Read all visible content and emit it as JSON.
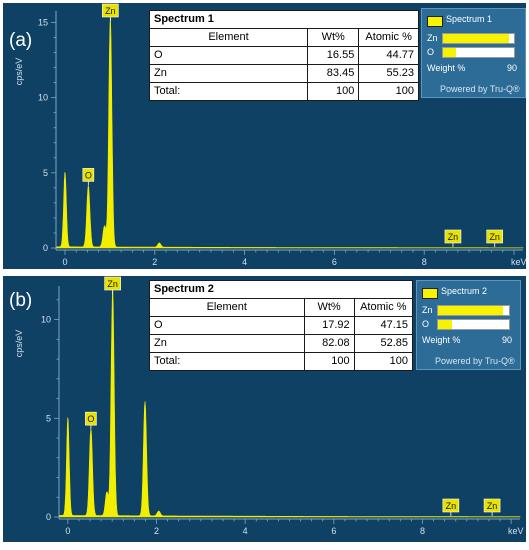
{
  "panels": [
    {
      "letter": "(a)",
      "table": {
        "title": "Spectrum 1",
        "headers": [
          "Element",
          "Wt%",
          "Atomic %"
        ],
        "rows": [
          [
            "O",
            "16.55",
            "44.77"
          ],
          [
            "Zn",
            "83.45",
            "55.23"
          ],
          [
            "Total:",
            "100",
            "100"
          ]
        ]
      },
      "legend": {
        "series_name": "Spectrum 1",
        "bars": [
          {
            "label": "Zn",
            "fraction": 0.8345
          },
          {
            "label": "O",
            "fraction": 0.1655
          }
        ],
        "weight_label": "Weight %",
        "weight_max": "90",
        "powered": "Powered by Tru-Q®"
      }
    },
    {
      "letter": "(b)",
      "table": {
        "title": "Spectrum 2",
        "headers": [
          "Element",
          "Wt%",
          "Atomic %"
        ],
        "rows": [
          [
            "O",
            "17.92",
            "47.15"
          ],
          [
            "Zn",
            "82.08",
            "52.85"
          ],
          [
            "Total:",
            "100",
            "100"
          ]
        ]
      },
      "legend": {
        "series_name": "Spectrum 2",
        "bars": [
          {
            "label": "Zn",
            "fraction": 0.8208
          },
          {
            "label": "O",
            "fraction": 0.1792
          }
        ],
        "weight_label": "Weight %",
        "weight_max": "90",
        "powered": "Powered by Tru-Q®"
      }
    }
  ],
  "chart_data": [
    {
      "type": "area",
      "xlabel": "keV",
      "ylabel": "cps/eV",
      "xlim": [
        -0.2,
        10.2
      ],
      "ylim": [
        0,
        15.5
      ],
      "x_ticks": [
        "0",
        "2",
        "4",
        "6",
        "8"
      ],
      "y_ticks": [
        "0",
        "5",
        "10",
        "15"
      ],
      "grid": false,
      "colors": {
        "fill": "#f2ee00",
        "axis": "#7fa6c4",
        "text": "#cfe0ee"
      },
      "peaks": [
        {
          "x": 0.0,
          "y": 5.0
        },
        {
          "x": 0.52,
          "y": 4.1
        },
        {
          "x": 0.88,
          "y": 1.4
        },
        {
          "x": 1.01,
          "y": 15.3
        },
        {
          "x": 2.1,
          "y": 0.28
        }
      ],
      "annotations": [
        {
          "label": "Zn",
          "x": 1.01,
          "y": 15.3
        },
        {
          "label": "O",
          "x": 0.52,
          "y": 4.1
        },
        {
          "label": "Zn",
          "x": 8.64,
          "y": 0.0
        },
        {
          "label": "Zn",
          "x": 9.57,
          "y": 0.0
        }
      ]
    },
    {
      "type": "area",
      "xlabel": "keV",
      "ylabel": "cps/eV",
      "xlim": [
        -0.2,
        10.2
      ],
      "ylim": [
        0,
        11.5
      ],
      "x_ticks": [
        "0",
        "2",
        "4",
        "6",
        "8"
      ],
      "y_ticks": [
        "0",
        "5",
        "10"
      ],
      "grid": false,
      "colors": {
        "fill": "#f2ee00",
        "axis": "#7fa6c4",
        "text": "#cfe0ee"
      },
      "peaks": [
        {
          "x": 0.0,
          "y": 5.0
        },
        {
          "x": 0.52,
          "y": 4.4
        },
        {
          "x": 0.88,
          "y": 1.2
        },
        {
          "x": 1.01,
          "y": 11.5
        },
        {
          "x": 1.74,
          "y": 5.8
        },
        {
          "x": 2.05,
          "y": 0.25
        }
      ],
      "annotations": [
        {
          "label": "Zn",
          "x": 1.01,
          "y": 11.5
        },
        {
          "label": "O",
          "x": 0.52,
          "y": 4.4
        },
        {
          "label": "Zn",
          "x": 8.64,
          "y": 0.0
        },
        {
          "label": "Zn",
          "x": 9.57,
          "y": 0.0
        }
      ]
    }
  ]
}
